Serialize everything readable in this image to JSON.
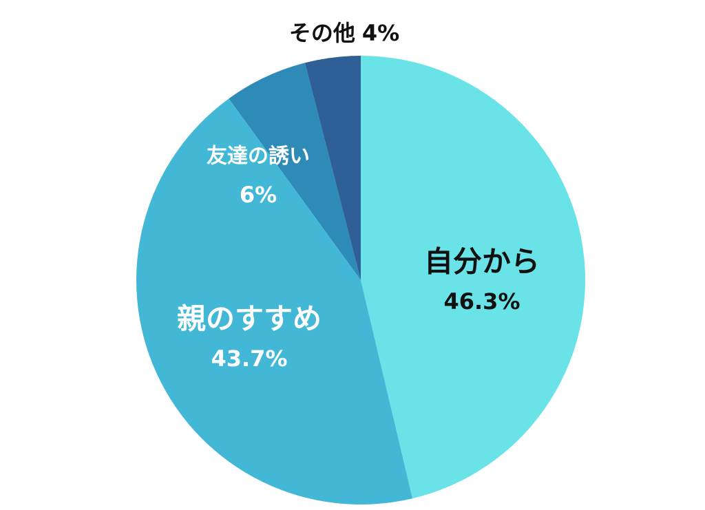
{
  "chart_data": {
    "type": "pie",
    "categories": [
      "自分から",
      "親のすすめ",
      "友達の誘い",
      "その他"
    ],
    "values": [
      46.3,
      43.7,
      6,
      4
    ],
    "value_labels": [
      "46.3%",
      "43.7%",
      "6%",
      "4%"
    ],
    "colors": [
      "#6ae3e8",
      "#43b8d6",
      "#2e8bb8",
      "#2e5f96"
    ]
  }
}
